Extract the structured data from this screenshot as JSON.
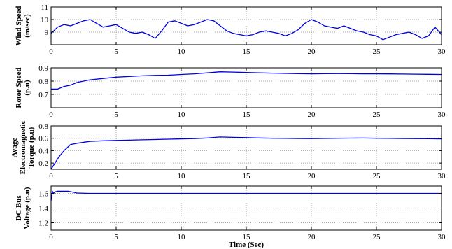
{
  "chart_data": [
    {
      "type": "line",
      "ylabel": [
        "Wind Speed",
        "(m/sec)"
      ],
      "xlim": [
        0,
        30
      ],
      "ylim": [
        8,
        11
      ],
      "xticks": [
        0,
        5,
        10,
        15,
        20,
        25,
        30
      ],
      "yticks": [
        9,
        10,
        11
      ],
      "grid": true,
      "color": "#0000e0",
      "series": [
        {
          "x": [
            0,
            0.5,
            1,
            1.5,
            2,
            2.5,
            3,
            3.5,
            4,
            4.5,
            5,
            5.5,
            6,
            6.5,
            7,
            7.5,
            8,
            8.5,
            9,
            9.5,
            10,
            10.5,
            11,
            11.5,
            12,
            12.5,
            13,
            13.5,
            14,
            14.5,
            15,
            15.5,
            16,
            16.5,
            17,
            17.5,
            18,
            18.5,
            19,
            19.5,
            20,
            20.5,
            21,
            21.5,
            22,
            22.5,
            23,
            23.5,
            24,
            24.5,
            25,
            25.5,
            26,
            26.5,
            27,
            27.5,
            28,
            28.5,
            29,
            29.5,
            30
          ],
          "y": [
            8.9,
            9.4,
            9.6,
            9.5,
            9.7,
            9.9,
            10.0,
            9.7,
            9.4,
            9.5,
            9.6,
            9.3,
            9.0,
            8.9,
            9.0,
            8.8,
            8.5,
            9.1,
            9.8,
            9.9,
            9.7,
            9.5,
            9.6,
            9.8,
            10.0,
            9.9,
            9.5,
            9.1,
            8.9,
            8.8,
            8.7,
            8.8,
            9.0,
            9.1,
            9.0,
            8.9,
            8.7,
            8.9,
            9.2,
            9.7,
            10.0,
            9.8,
            9.5,
            9.4,
            9.3,
            9.5,
            9.3,
            9.1,
            9.0,
            8.8,
            8.7,
            8.4,
            8.6,
            8.8,
            8.9,
            9.0,
            8.8,
            8.5,
            8.7,
            9.4,
            8.8
          ]
        }
      ]
    },
    {
      "type": "line",
      "ylabel": [
        "Rotor Speed",
        "(p.u)"
      ],
      "xlim": [
        0,
        30
      ],
      "ylim": [
        0.6,
        0.9
      ],
      "xticks": [
        0,
        5,
        10,
        15,
        20,
        25,
        30
      ],
      "yticks": [
        0.7,
        0.8,
        0.9
      ],
      "grid": true,
      "color": "#0000e0",
      "series": [
        {
          "x": [
            0,
            0.5,
            1,
            1.5,
            2,
            2.5,
            3,
            4,
            5,
            6,
            7,
            8,
            9,
            10,
            11,
            12,
            13,
            14,
            15,
            16,
            17,
            18,
            19,
            20,
            21,
            22,
            23,
            24,
            25,
            26,
            27,
            28,
            29,
            30
          ],
          "y": [
            0.74,
            0.74,
            0.76,
            0.77,
            0.79,
            0.8,
            0.81,
            0.82,
            0.83,
            0.835,
            0.84,
            0.843,
            0.845,
            0.85,
            0.855,
            0.862,
            0.87,
            0.868,
            0.865,
            0.862,
            0.86,
            0.858,
            0.856,
            0.855,
            0.856,
            0.857,
            0.856,
            0.855,
            0.855,
            0.854,
            0.853,
            0.852,
            0.851,
            0.85
          ]
        }
      ]
    },
    {
      "type": "line",
      "ylabel": [
        "Avage",
        "Electromagnetic",
        "Torque (p.u)"
      ],
      "xlim": [
        0,
        30
      ],
      "ylim": [
        0.1,
        0.8
      ],
      "xticks": [
        0,
        5,
        10,
        15,
        20,
        25,
        30
      ],
      "yticks": [
        0.2,
        0.4,
        0.6,
        0.8
      ],
      "grid": true,
      "color": "#0000e0",
      "series": [
        {
          "x": [
            0,
            0.3,
            0.6,
            1,
            1.5,
            2,
            3,
            4,
            5,
            6,
            7,
            8,
            9,
            10,
            11,
            12,
            13,
            14,
            15,
            16,
            17,
            18,
            19,
            20,
            21,
            22,
            23,
            24,
            25,
            26,
            27,
            28,
            29,
            30
          ],
          "y": [
            0.1,
            0.2,
            0.3,
            0.4,
            0.5,
            0.52,
            0.55,
            0.56,
            0.565,
            0.57,
            0.575,
            0.58,
            0.585,
            0.59,
            0.595,
            0.605,
            0.62,
            0.615,
            0.61,
            0.605,
            0.6,
            0.598,
            0.596,
            0.595,
            0.597,
            0.6,
            0.602,
            0.603,
            0.6,
            0.598,
            0.596,
            0.594,
            0.592,
            0.59
          ]
        }
      ]
    },
    {
      "type": "line",
      "ylabel": [
        "DC Bus",
        "Voltage (p.u)"
      ],
      "xlabel": "Time (Sec)",
      "xlim": [
        0,
        30
      ],
      "ylim": [
        1.1,
        1.7
      ],
      "xticks": [
        0,
        5,
        10,
        15,
        20,
        25,
        30
      ],
      "yticks": [
        1.2,
        1.4,
        1.6
      ],
      "grid": true,
      "color": "#0000e0",
      "series": [
        {
          "x": [
            0,
            0.05,
            0.1,
            0.2,
            0.3,
            0.5,
            0.7,
            1,
            1.3,
            1.6,
            2,
            3,
            5,
            8,
            10,
            15,
            20,
            25,
            30
          ],
          "y": [
            1.5,
            1.55,
            1.63,
            1.6,
            1.62,
            1.63,
            1.63,
            1.63,
            1.63,
            1.62,
            1.605,
            1.6,
            1.6,
            1.6,
            1.6,
            1.6,
            1.6,
            1.6,
            1.6
          ]
        }
      ]
    }
  ]
}
